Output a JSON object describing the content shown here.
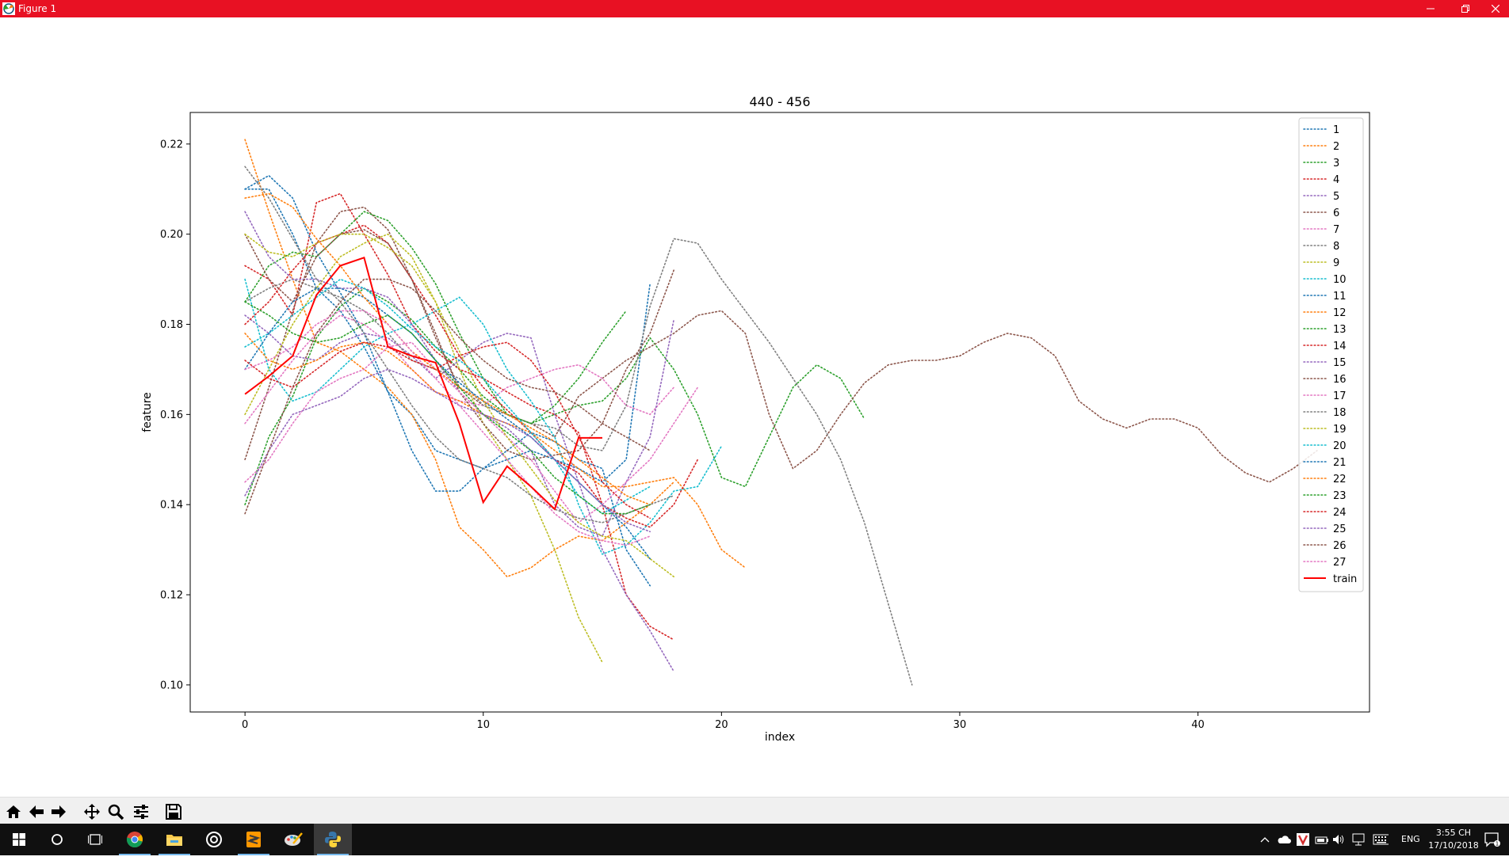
{
  "window": {
    "title": "Figure 1"
  },
  "toolbar": {
    "buttons": [
      "home-icon",
      "back-arrow-icon",
      "forward-arrow-icon",
      "pan-icon",
      "zoom-icon",
      "configure-subplots-icon",
      "save-icon"
    ]
  },
  "taskbar": {
    "language": "ENG",
    "time": "3:55 CH",
    "date": "17/10/2018",
    "apps": [
      "windows-start-icon",
      "cortana-icon",
      "task-view-icon",
      "chrome-icon",
      "file-explorer-icon",
      "media-app-icon",
      "sublime-text-icon",
      "paint-app-icon",
      "python-icon"
    ]
  },
  "chart_data": {
    "type": "line",
    "title": "440 - 456",
    "xlabel": "index",
    "ylabel": "feature",
    "xlim": [
      -2.3,
      47.2
    ],
    "ylim": [
      0.094,
      0.227
    ],
    "xticks": [
      0,
      10,
      20,
      30,
      40
    ],
    "yticks": [
      0.1,
      0.12,
      0.14,
      0.16,
      0.18,
      0.2,
      0.22
    ],
    "legend_position": "top-right",
    "colors": [
      "#1f77b4",
      "#ff7f0e",
      "#2ca02c",
      "#d62728",
      "#9467bd",
      "#8c564b",
      "#e377c2",
      "#7f7f7f",
      "#bcbd22",
      "#17becf"
    ],
    "series": [
      {
        "name": "1",
        "values": [
          0.21,
          0.21,
          0.2,
          0.188,
          0.183,
          0.175,
          0.165,
          0.16,
          0.152,
          0.15,
          0.148,
          0.15,
          0.152,
          0.15,
          0.148,
          0.145,
          0.15,
          0.189
        ]
      },
      {
        "name": "2",
        "values": [
          0.221,
          0.205,
          0.19,
          0.176,
          0.174,
          0.17,
          0.166,
          0.16,
          0.15,
          0.135,
          0.13,
          0.124,
          0.126,
          0.13,
          0.133,
          0.132,
          0.136,
          0.14,
          0.145
        ]
      },
      {
        "name": "3",
        "values": [
          0.14,
          0.155,
          0.164,
          0.177,
          0.184,
          0.188,
          0.185,
          0.181,
          0.175,
          0.17,
          0.164,
          0.16,
          0.158,
          0.16,
          0.162,
          0.163,
          0.168,
          0.177,
          0.17,
          0.16,
          0.146,
          0.144,
          0.155,
          0.166,
          0.171,
          0.168,
          0.159
        ]
      },
      {
        "name": "4",
        "values": [
          0.193,
          0.19,
          0.182,
          0.207,
          0.209,
          0.2,
          0.191,
          0.18,
          0.174,
          0.17,
          0.168,
          0.165,
          0.162,
          0.16,
          0.156,
          0.14,
          0.12,
          0.113,
          0.11
        ]
      },
      {
        "name": "5",
        "values": [
          0.182,
          0.178,
          0.173,
          0.172,
          0.176,
          0.178,
          0.177,
          0.173,
          0.168,
          0.172,
          0.176,
          0.178,
          0.177,
          0.16,
          0.145,
          0.13,
          0.12,
          0.112,
          0.103
        ]
      },
      {
        "name": "6",
        "values": [
          0.15,
          0.166,
          0.183,
          0.198,
          0.205,
          0.206,
          0.201,
          0.19,
          0.177,
          0.166,
          0.162,
          0.16,
          0.158,
          0.155,
          0.164,
          0.168,
          0.172,
          0.175,
          0.178,
          0.182,
          0.183,
          0.178,
          0.16,
          0.148,
          0.152,
          0.16,
          0.167,
          0.171,
          0.172,
          0.172,
          0.173,
          0.176,
          0.178,
          0.177,
          0.173,
          0.163,
          0.159,
          0.157,
          0.159,
          0.159,
          0.157,
          0.151,
          0.147,
          0.145,
          0.148,
          0.152
        ]
      },
      {
        "name": "7",
        "values": [
          0.158,
          0.165,
          0.172,
          0.178,
          0.182,
          0.18,
          0.176,
          0.17,
          0.165,
          0.163,
          0.162,
          0.166,
          0.168,
          0.17,
          0.171,
          0.168,
          0.162,
          0.16,
          0.166
        ]
      },
      {
        "name": "8",
        "values": [
          0.185,
          0.188,
          0.19,
          0.188,
          0.186,
          0.183,
          0.178,
          0.172,
          0.17,
          0.168,
          0.162,
          0.16,
          0.158,
          0.157,
          0.153,
          0.152,
          0.162,
          0.184,
          0.199,
          0.198,
          0.19,
          0.183,
          0.176,
          0.168,
          0.16,
          0.15,
          0.136,
          0.118,
          0.1
        ]
      },
      {
        "name": "9",
        "values": [
          0.16,
          0.17,
          0.18,
          0.188,
          0.195,
          0.198,
          0.2,
          0.195,
          0.185,
          0.17,
          0.158,
          0.15,
          0.142,
          0.13,
          0.115,
          0.105
        ]
      },
      {
        "name": "10",
        "values": [
          0.19,
          0.17,
          0.163,
          0.165,
          0.17,
          0.175,
          0.178,
          0.18,
          0.183,
          0.186,
          0.18,
          0.17,
          0.163,
          0.155,
          0.14,
          0.129,
          0.131,
          0.136,
          0.143,
          0.144,
          0.153
        ]
      },
      {
        "name": "11",
        "values": [
          0.21,
          0.213,
          0.208,
          0.196,
          0.187,
          0.178,
          0.165,
          0.152,
          0.143,
          0.143,
          0.148,
          0.152,
          0.156,
          0.154,
          0.15,
          0.148,
          0.13,
          0.122
        ]
      },
      {
        "name": "12",
        "values": [
          0.178,
          0.172,
          0.17,
          0.172,
          0.175,
          0.176,
          0.174,
          0.17,
          0.165,
          0.163,
          0.16,
          0.158,
          0.156,
          0.152,
          0.148,
          0.144,
          0.144,
          0.145,
          0.146,
          0.14,
          0.13,
          0.126
        ]
      },
      {
        "name": "13",
        "values": [
          0.185,
          0.193,
          0.196,
          0.195,
          0.2,
          0.205,
          0.203,
          0.197,
          0.189,
          0.178,
          0.168,
          0.16,
          0.158,
          0.162,
          0.168,
          0.176,
          0.183
        ]
      },
      {
        "name": "14",
        "values": [
          0.18,
          0.185,
          0.192,
          0.198,
          0.2,
          0.202,
          0.198,
          0.19,
          0.182,
          0.173,
          0.166,
          0.161,
          0.156,
          0.15,
          0.147,
          0.14,
          0.137,
          0.135,
          0.14,
          0.15
        ]
      },
      {
        "name": "15",
        "values": [
          0.205,
          0.195,
          0.19,
          0.19,
          0.188,
          0.188,
          0.186,
          0.18,
          0.172,
          0.165,
          0.16,
          0.157,
          0.152,
          0.14,
          0.135,
          0.133,
          0.145,
          0.155,
          0.181
        ]
      },
      {
        "name": "16",
        "values": [
          0.2,
          0.19,
          0.185,
          0.195,
          0.2,
          0.201,
          0.198,
          0.19,
          0.178,
          0.165,
          0.158,
          0.152,
          0.15,
          0.151,
          0.152,
          0.158,
          0.17,
          0.178,
          0.192
        ]
      },
      {
        "name": "17",
        "values": [
          0.145,
          0.15,
          0.158,
          0.165,
          0.168,
          0.17,
          0.175,
          0.176,
          0.17,
          0.165,
          0.16,
          0.155,
          0.15,
          0.143,
          0.136,
          0.14,
          0.145,
          0.15,
          0.158,
          0.166
        ]
      },
      {
        "name": "18",
        "values": [
          0.215,
          0.208,
          0.199,
          0.19,
          0.185,
          0.178,
          0.17,
          0.162,
          0.155,
          0.15,
          0.148,
          0.146,
          0.142,
          0.139,
          0.137,
          0.136,
          0.138,
          0.14,
          0.142
        ]
      },
      {
        "name": "19",
        "values": [
          0.2,
          0.196,
          0.195,
          0.198,
          0.2,
          0.2,
          0.197,
          0.193,
          0.185,
          0.174,
          0.163,
          0.155,
          0.148,
          0.141,
          0.136,
          0.133,
          0.132,
          0.128,
          0.124
        ]
      },
      {
        "name": "20",
        "values": [
          0.175,
          0.178,
          0.182,
          0.186,
          0.19,
          0.188,
          0.184,
          0.179,
          0.175,
          0.172,
          0.168,
          0.162,
          0.156,
          0.15,
          0.142,
          0.138,
          0.141,
          0.144
        ]
      },
      {
        "name": "21",
        "values": [
          0.17,
          0.178,
          0.185,
          0.188,
          0.188,
          0.186,
          0.182,
          0.178,
          0.172,
          0.167,
          0.163,
          0.159,
          0.155,
          0.15,
          0.145,
          0.14,
          0.135,
          0.128
        ]
      },
      {
        "name": "22",
        "values": [
          0.208,
          0.209,
          0.206,
          0.199,
          0.193,
          0.186,
          0.18,
          0.174,
          0.17,
          0.166,
          0.163,
          0.16,
          0.157,
          0.154,
          0.15,
          0.146,
          0.142,
          0.14
        ]
      },
      {
        "name": "23",
        "values": [
          0.185,
          0.182,
          0.178,
          0.176,
          0.177,
          0.18,
          0.182,
          0.178,
          0.172,
          0.166,
          0.16,
          0.156,
          0.152,
          0.146,
          0.142,
          0.138,
          0.138,
          0.14
        ]
      },
      {
        "name": "24",
        "values": [
          0.172,
          0.168,
          0.166,
          0.17,
          0.174,
          0.176,
          0.175,
          0.172,
          0.17,
          0.173,
          0.175,
          0.176,
          0.172,
          0.165,
          0.155,
          0.145,
          0.14,
          0.137
        ]
      },
      {
        "name": "25",
        "values": [
          0.142,
          0.152,
          0.16,
          0.162,
          0.164,
          0.168,
          0.17,
          0.168,
          0.165,
          0.162,
          0.16,
          0.158,
          0.155,
          0.15,
          0.145,
          0.14,
          0.136,
          0.134
        ]
      },
      {
        "name": "26",
        "values": [
          0.138,
          0.152,
          0.166,
          0.178,
          0.185,
          0.19,
          0.19,
          0.188,
          0.183,
          0.177,
          0.172,
          0.168,
          0.166,
          0.165,
          0.162,
          0.158,
          0.155,
          0.152
        ]
      },
      {
        "name": "27",
        "values": [
          0.17,
          0.172,
          0.175,
          0.18,
          0.183,
          0.183,
          0.18,
          0.174,
          0.168,
          0.162,
          0.156,
          0.15,
          0.144,
          0.138,
          0.134,
          0.132,
          0.131,
          0.133
        ]
      },
      {
        "name": "train",
        "values": [
          0.1645,
          0.1685,
          0.173,
          0.1865,
          0.193,
          0.1948,
          0.175,
          0.173,
          0.1715,
          0.158,
          0.1405,
          0.1485,
          0.144,
          0.139,
          0.1548,
          0.1548
        ],
        "color": "#ff0000",
        "style": "solid"
      }
    ]
  }
}
